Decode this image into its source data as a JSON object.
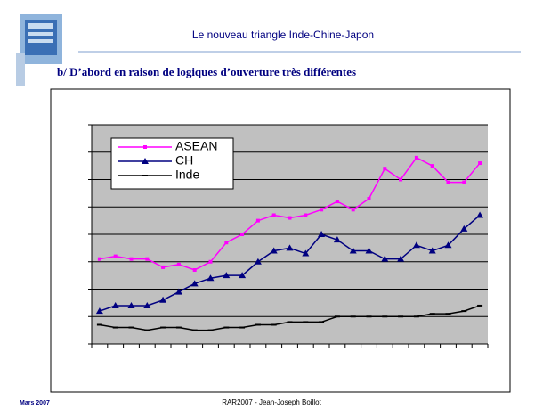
{
  "slide": {
    "title": "Le nouveau triangle Inde-Chine-Japon",
    "subtitle": "b/ D’abord en raison de logiques d’ouverture très différentes",
    "footer_date": "Mars 2007",
    "footer_text": "RAR2007 - Jean-Joseph Boillot"
  },
  "chart_data": {
    "type": "line",
    "categories": [
      null,
      null,
      null,
      null,
      null,
      null,
      null,
      null,
      null,
      null,
      null,
      null,
      null,
      null,
      null,
      null,
      null,
      null,
      null,
      null,
      null,
      null,
      null,
      null,
      null
    ],
    "series": [
      {
        "name": "ASEAN",
        "color": "#ff00ff",
        "marker": "square",
        "values": [
          3.1,
          3.2,
          3.1,
          3.1,
          2.8,
          2.9,
          2.7,
          3.0,
          3.7,
          4.0,
          4.5,
          4.7,
          4.6,
          4.7,
          4.9,
          5.2,
          4.9,
          5.3,
          6.4,
          6.0,
          6.8,
          6.5,
          5.9,
          5.9,
          6.6
        ]
      },
      {
        "name": "CH",
        "color": "#000080",
        "marker": "triangle",
        "values": [
          1.2,
          1.4,
          1.4,
          1.4,
          1.6,
          1.9,
          2.2,
          2.4,
          2.5,
          2.5,
          3.0,
          3.4,
          3.5,
          3.3,
          4.0,
          3.8,
          3.4,
          3.4,
          3.1,
          3.1,
          3.6,
          3.4,
          3.6,
          4.2,
          4.7
        ]
      },
      {
        "name": "Inde",
        "color": "#000000",
        "marker": "dash",
        "values": [
          0.7,
          0.6,
          0.6,
          0.5,
          0.6,
          0.6,
          0.5,
          0.5,
          0.6,
          0.6,
          0.7,
          0.7,
          0.8,
          0.8,
          0.8,
          1.0,
          1.0,
          1.0,
          1.0,
          1.0,
          1.0,
          1.1,
          1.1,
          1.2,
          1.4
        ]
      }
    ],
    "ylim": [
      0,
      8
    ],
    "yticks": [
      0,
      1,
      2,
      3,
      4,
      5,
      6,
      7,
      8
    ],
    "grid": true,
    "legend": "top-left"
  }
}
